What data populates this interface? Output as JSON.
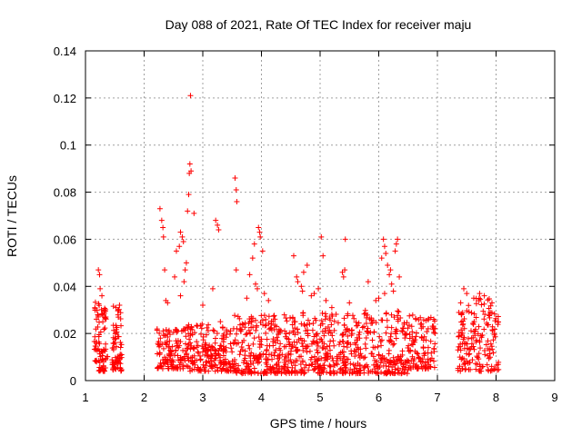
{
  "chart_data": {
    "type": "scatter",
    "title": "Day 088 of 2021, Rate Of TEC Index for receiver maju",
    "xlabel": "GPS time / hours",
    "ylabel": "ROTI / TECUs",
    "xlim": [
      1,
      9
    ],
    "ylim": [
      0,
      0.14
    ],
    "xticks": [
      1,
      2,
      3,
      4,
      5,
      6,
      7,
      8,
      9
    ],
    "yticks": [
      0,
      0.02,
      0.04,
      0.06,
      0.08,
      0.1,
      0.12,
      0.14
    ],
    "ytick_labels": [
      "0",
      "0.02",
      "0.04",
      "0.06",
      "0.08",
      "0.1",
      "0.12",
      "0.14"
    ],
    "grid": true,
    "marker": "+",
    "color": "#ff0000",
    "dense_bands": [
      {
        "x": [
          1.15,
          1.38
        ],
        "y": [
          0.004,
          0.034
        ],
        "n": 90
      },
      {
        "x": [
          1.45,
          1.62
        ],
        "y": [
          0.004,
          0.033
        ],
        "n": 70
      },
      {
        "x": [
          2.22,
          2.7
        ],
        "y": [
          0.005,
          0.022
        ],
        "n": 120
      },
      {
        "x": [
          2.7,
          3.5
        ],
        "y": [
          0.004,
          0.024
        ],
        "n": 200
      },
      {
        "x": [
          3.5,
          4.5
        ],
        "y": [
          0.003,
          0.028
        ],
        "n": 260
      },
      {
        "x": [
          4.5,
          5.5
        ],
        "y": [
          0.003,
          0.03
        ],
        "n": 260
      },
      {
        "x": [
          5.5,
          6.5
        ],
        "y": [
          0.003,
          0.03
        ],
        "n": 240
      },
      {
        "x": [
          6.5,
          6.97
        ],
        "y": [
          0.005,
          0.028
        ],
        "n": 110
      },
      {
        "x": [
          7.35,
          8.05
        ],
        "y": [
          0.004,
          0.035
        ],
        "n": 170
      }
    ],
    "points": [
      {
        "x": 1.22,
        "y": 0.047
      },
      {
        "x": 1.24,
        "y": 0.045
      },
      {
        "x": 1.25,
        "y": 0.039
      },
      {
        "x": 1.28,
        "y": 0.036
      },
      {
        "x": 1.52,
        "y": 0.031
      },
      {
        "x": 1.58,
        "y": 0.032
      },
      {
        "x": 2.27,
        "y": 0.073
      },
      {
        "x": 2.3,
        "y": 0.068
      },
      {
        "x": 2.32,
        "y": 0.065
      },
      {
        "x": 2.33,
        "y": 0.061
      },
      {
        "x": 2.35,
        "y": 0.047
      },
      {
        "x": 2.37,
        "y": 0.034
      },
      {
        "x": 2.4,
        "y": 0.033
      },
      {
        "x": 2.52,
        "y": 0.044
      },
      {
        "x": 2.55,
        "y": 0.055
      },
      {
        "x": 2.6,
        "y": 0.057
      },
      {
        "x": 2.62,
        "y": 0.063
      },
      {
        "x": 2.65,
        "y": 0.061
      },
      {
        "x": 2.67,
        "y": 0.059
      },
      {
        "x": 2.7,
        "y": 0.047
      },
      {
        "x": 2.72,
        "y": 0.05
      },
      {
        "x": 2.74,
        "y": 0.072
      },
      {
        "x": 2.76,
        "y": 0.079
      },
      {
        "x": 2.77,
        "y": 0.088
      },
      {
        "x": 2.78,
        "y": 0.092
      },
      {
        "x": 2.8,
        "y": 0.089
      },
      {
        "x": 2.79,
        "y": 0.121
      },
      {
        "x": 2.85,
        "y": 0.071
      },
      {
        "x": 2.62,
        "y": 0.036
      },
      {
        "x": 2.68,
        "y": 0.042
      },
      {
        "x": 3.0,
        "y": 0.032
      },
      {
        "x": 3.17,
        "y": 0.039
      },
      {
        "x": 3.22,
        "y": 0.068
      },
      {
        "x": 3.25,
        "y": 0.066
      },
      {
        "x": 3.27,
        "y": 0.064
      },
      {
        "x": 3.3,
        "y": 0.025
      },
      {
        "x": 3.55,
        "y": 0.086
      },
      {
        "x": 3.57,
        "y": 0.081
      },
      {
        "x": 3.58,
        "y": 0.076
      },
      {
        "x": 3.57,
        "y": 0.047
      },
      {
        "x": 3.75,
        "y": 0.035
      },
      {
        "x": 3.8,
        "y": 0.045
      },
      {
        "x": 3.85,
        "y": 0.052
      },
      {
        "x": 3.88,
        "y": 0.058
      },
      {
        "x": 3.95,
        "y": 0.065
      },
      {
        "x": 3.97,
        "y": 0.063
      },
      {
        "x": 3.98,
        "y": 0.061
      },
      {
        "x": 4.02,
        "y": 0.055
      },
      {
        "x": 3.9,
        "y": 0.041
      },
      {
        "x": 3.93,
        "y": 0.039
      },
      {
        "x": 4.05,
        "y": 0.037
      },
      {
        "x": 4.12,
        "y": 0.034
      },
      {
        "x": 4.55,
        "y": 0.053
      },
      {
        "x": 4.6,
        "y": 0.044
      },
      {
        "x": 4.62,
        "y": 0.042
      },
      {
        "x": 4.68,
        "y": 0.04
      },
      {
        "x": 4.7,
        "y": 0.038
      },
      {
        "x": 4.72,
        "y": 0.046
      },
      {
        "x": 4.78,
        "y": 0.049
      },
      {
        "x": 4.85,
        "y": 0.036
      },
      {
        "x": 4.9,
        "y": 0.037
      },
      {
        "x": 4.97,
        "y": 0.039
      },
      {
        "x": 5.02,
        "y": 0.061
      },
      {
        "x": 5.05,
        "y": 0.053
      },
      {
        "x": 5.1,
        "y": 0.034
      },
      {
        "x": 5.2,
        "y": 0.031
      },
      {
        "x": 5.38,
        "y": 0.046
      },
      {
        "x": 5.4,
        "y": 0.044
      },
      {
        "x": 5.42,
        "y": 0.047
      },
      {
        "x": 5.43,
        "y": 0.06
      },
      {
        "x": 5.5,
        "y": 0.033
      },
      {
        "x": 5.82,
        "y": 0.042
      },
      {
        "x": 5.95,
        "y": 0.034
      },
      {
        "x": 6.05,
        "y": 0.052
      },
      {
        "x": 6.08,
        "y": 0.06
      },
      {
        "x": 6.1,
        "y": 0.057
      },
      {
        "x": 6.12,
        "y": 0.054
      },
      {
        "x": 6.15,
        "y": 0.049
      },
      {
        "x": 6.18,
        "y": 0.045
      },
      {
        "x": 6.2,
        "y": 0.047
      },
      {
        "x": 6.22,
        "y": 0.041
      },
      {
        "x": 6.25,
        "y": 0.038
      },
      {
        "x": 6.28,
        "y": 0.055
      },
      {
        "x": 6.3,
        "y": 0.058
      },
      {
        "x": 6.32,
        "y": 0.06
      },
      {
        "x": 6.35,
        "y": 0.044
      },
      {
        "x": 6.1,
        "y": 0.037
      },
      {
        "x": 6.0,
        "y": 0.035
      },
      {
        "x": 7.45,
        "y": 0.039
      },
      {
        "x": 7.5,
        "y": 0.037
      },
      {
        "x": 7.62,
        "y": 0.035
      },
      {
        "x": 7.72,
        "y": 0.037
      },
      {
        "x": 7.8,
        "y": 0.036
      },
      {
        "x": 7.9,
        "y": 0.029
      }
    ]
  }
}
